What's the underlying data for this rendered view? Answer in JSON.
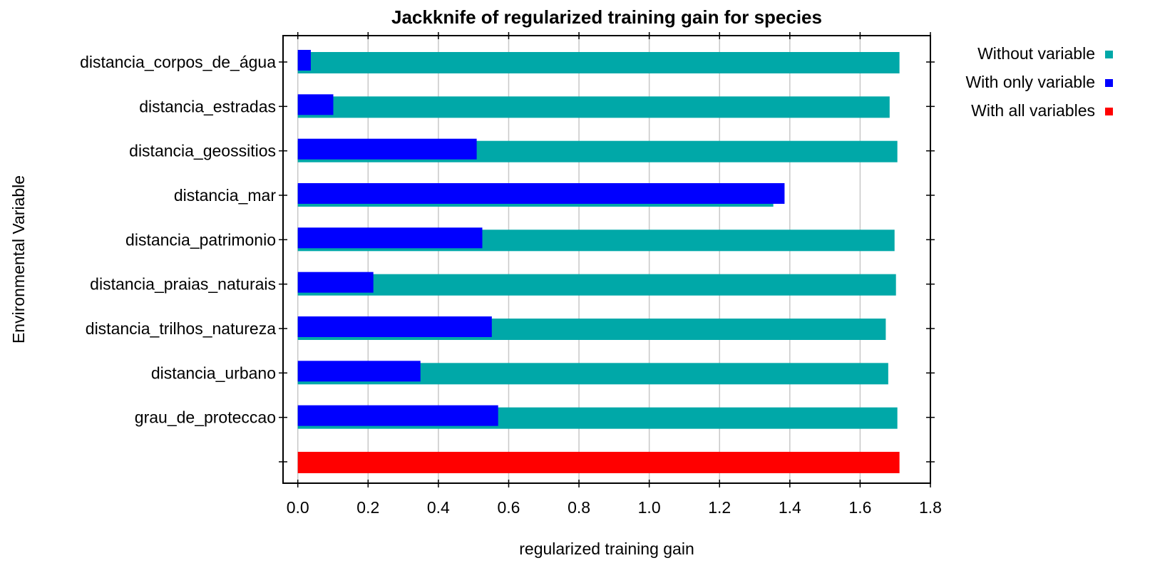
{
  "chart_data": {
    "type": "bar",
    "orientation": "horizontal",
    "title": "Jackknife of regularized training gain for species",
    "xlabel": "regularized training gain",
    "ylabel": "Environmental Variable",
    "categories": [
      "distancia_corpos_de_água",
      "distancia_estradas",
      "distancia_geossitios",
      "distancia_mar",
      "distancia_patrimonio",
      "distancia_praias_naturais",
      "distancia_trilhos_natureza",
      "distancia_urbano",
      "grau_de_proteccao",
      null
    ],
    "series": [
      {
        "name": "Without variable",
        "color": "#00a8a8",
        "values": [
          1.712,
          1.684,
          1.706,
          1.353,
          1.698,
          1.702,
          1.673,
          1.68,
          1.706,
          null
        ]
      },
      {
        "name": "With only variable",
        "color": "#0000ff",
        "values": [
          0.037,
          0.101,
          0.509,
          1.385,
          0.525,
          0.215,
          0.552,
          0.349,
          0.57,
          null
        ]
      },
      {
        "name": "With all variables",
        "color": "#ff0000",
        "values": [
          null,
          null,
          null,
          null,
          null,
          null,
          null,
          null,
          null,
          1.712
        ]
      }
    ],
    "xlim": [
      -0.042,
      1.8
    ],
    "xticks": [
      {
        "value": 0,
        "label": "0.0"
      },
      0.2,
      0.4,
      0.6,
      0.8,
      {
        "value": 1,
        "label": "1.0"
      },
      1.2,
      1.4,
      1.6,
      1.8
    ],
    "grid": true,
    "legend": "right"
  }
}
